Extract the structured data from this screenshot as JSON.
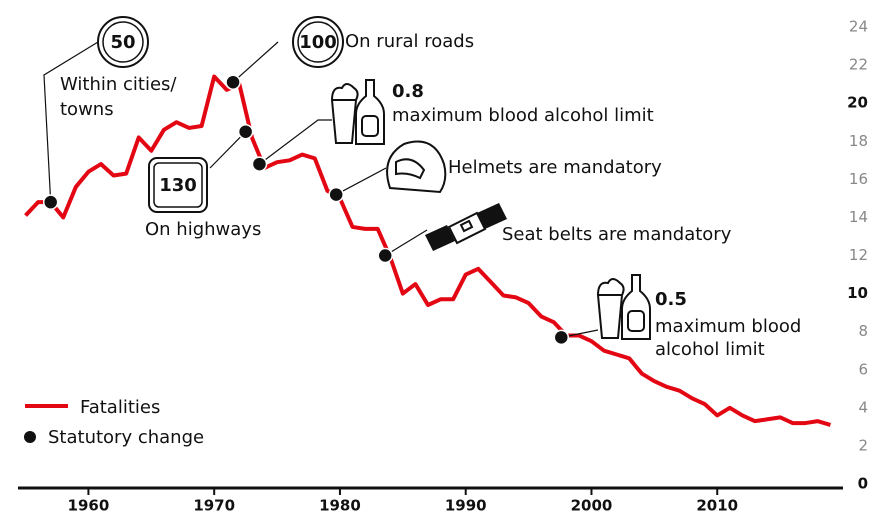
{
  "chart_data": {
    "type": "line",
    "x": [
      1955,
      1956,
      1957,
      1958,
      1959,
      1960,
      1961,
      1962,
      1963,
      1964,
      1965,
      1966,
      1967,
      1968,
      1969,
      1970,
      1971,
      1972,
      1973,
      1974,
      1975,
      1976,
      1977,
      1978,
      1979,
      1980,
      1981,
      1982,
      1983,
      1984,
      1985,
      1986,
      1987,
      1988,
      1989,
      1990,
      1991,
      1992,
      1993,
      1994,
      1995,
      1996,
      1997,
      1998,
      1999,
      2000,
      2001,
      2002,
      2003,
      2004,
      2005,
      2006,
      2007,
      2008,
      2009,
      2010,
      2011,
      2012,
      2013,
      2014,
      2015,
      2016,
      2017,
      2018,
      2019
    ],
    "series": [
      {
        "name": "Fatalities",
        "color": "#e30613",
        "values": [
          14.1,
          14.8,
          14.8,
          14.0,
          15.6,
          16.4,
          16.8,
          16.2,
          16.3,
          18.2,
          17.5,
          18.6,
          19.0,
          18.7,
          18.8,
          21.4,
          20.7,
          21.0,
          18.2,
          16.6,
          16.9,
          17.0,
          17.3,
          17.1,
          15.4,
          15.0,
          13.5,
          13.4,
          13.4,
          11.9,
          10.0,
          10.5,
          9.4,
          9.7,
          9.7,
          11.0,
          11.3,
          10.6,
          9.9,
          9.8,
          9.5,
          8.8,
          8.5,
          7.8,
          7.8,
          7.5,
          7.0,
          6.8,
          6.6,
          5.8,
          5.4,
          5.1,
          4.9,
          4.5,
          4.2,
          3.6,
          4.0,
          3.6,
          3.3,
          3.4,
          3.5,
          3.2,
          3.2,
          3.3,
          3.1
        ]
      }
    ],
    "events_label": "Statutory change",
    "events": [
      {
        "x": 1957,
        "y": 14.8,
        "sign": "50",
        "label": [
          "Within cities/",
          "towns"
        ]
      },
      {
        "x": 1971.5,
        "y": 21.1,
        "sign": "100",
        "label": [
          "On rural roads"
        ]
      },
      {
        "x": 1972.5,
        "y": 18.5,
        "sign": "130",
        "label": [
          "On highways"
        ]
      },
      {
        "x": 1973.6,
        "y": 16.8,
        "headline": "0.8",
        "label": [
          "maximum blood alcohol limit"
        ]
      },
      {
        "x": 1979.7,
        "y": 15.2,
        "label": [
          "Helmets are mandatory"
        ]
      },
      {
        "x": 1983.6,
        "y": 12.0,
        "label": [
          "Seat belts are mandatory"
        ]
      },
      {
        "x": 1997.6,
        "y": 7.7,
        "headline": "0.5",
        "label": [
          "maximum blood",
          "alcohol limit"
        ]
      }
    ],
    "xlim": [
      1954.4,
      2020
    ],
    "ylim": [
      0,
      24
    ],
    "xticks": [
      1960,
      1970,
      1980,
      1990,
      2000,
      2010
    ],
    "yticks": [
      0,
      2,
      4,
      6,
      8,
      10,
      12,
      14,
      16,
      18,
      20,
      22,
      24
    ]
  }
}
